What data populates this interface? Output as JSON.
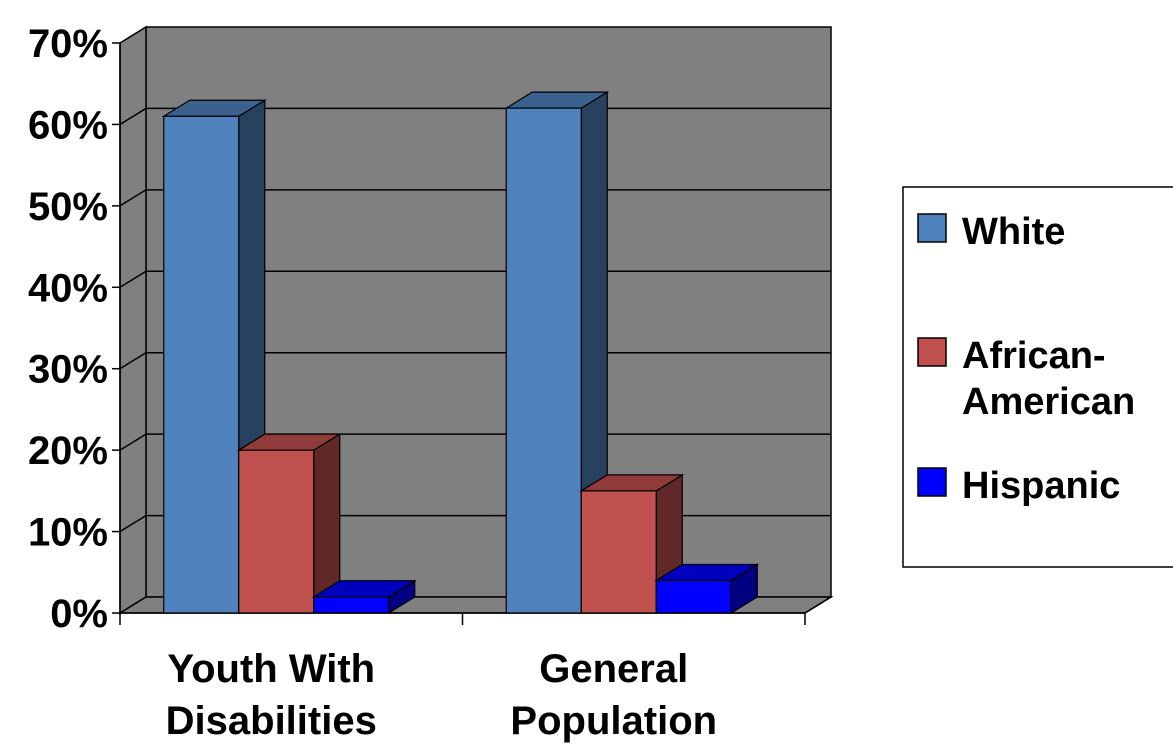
{
  "chart_data": {
    "type": "bar",
    "categories": [
      [
        "Youth With",
        "Disabilities"
      ],
      [
        "General",
        "Population"
      ]
    ],
    "series": [
      {
        "name": "White",
        "values": [
          61,
          62
        ],
        "color": "#4f81bd"
      },
      {
        "name": "African-American",
        "values": [
          20,
          15
        ],
        "color": "#c0504d"
      },
      {
        "name": "Hispanic",
        "values": [
          2,
          4
        ],
        "color": "#0000ff"
      }
    ],
    "legend_labels": [
      [
        "White"
      ],
      [
        "African-",
        "American"
      ],
      [
        "Hispanic"
      ]
    ],
    "yticks": [
      "0%",
      "10%",
      "20%",
      "30%",
      "40%",
      "50%",
      "60%",
      "70%"
    ],
    "ylim": [
      0,
      70
    ],
    "grid": true,
    "three_d": true,
    "plot_background": "#808080",
    "legend_position": "right"
  }
}
